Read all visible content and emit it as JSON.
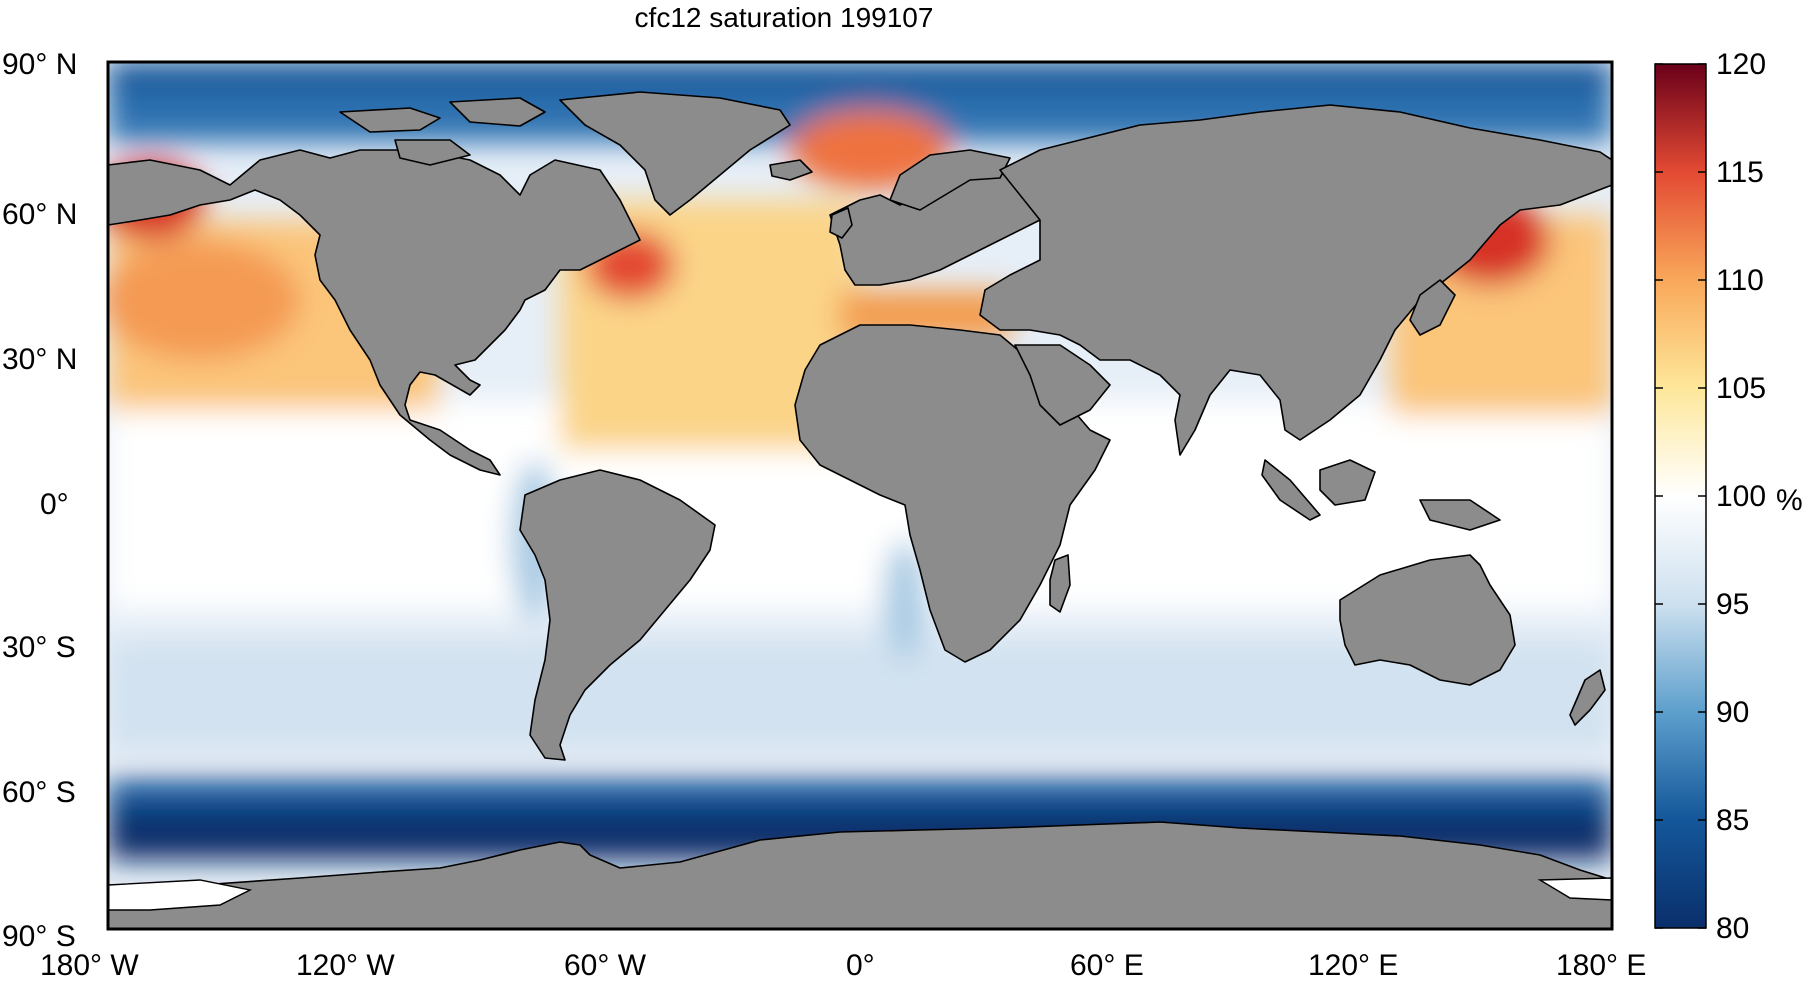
{
  "map": {
    "title": "cfc12 saturation 199107",
    "lat_labels": [
      "90° N",
      "60° N",
      "30° N",
      "0°",
      "30° S",
      "60° S",
      "90° S"
    ],
    "lon_labels": [
      "180° W",
      "120° W",
      "60° W",
      "0°",
      "60° E",
      "120° E",
      "180° E"
    ],
    "land_color": "#8c8c8c",
    "coastline_color": "#000000"
  },
  "colorbar": {
    "ticks": [
      "120",
      "115",
      "110",
      "105",
      "100",
      "95",
      "90",
      "85",
      "80"
    ],
    "unit": "%",
    "range": [
      80,
      120
    ],
    "colors_low_to_high": [
      "#0a2f6b",
      "#14579a",
      "#2d78b8",
      "#5d9fcc",
      "#99c3e0",
      "#cde0ef",
      "#eef4fa",
      "#ffffff",
      "#fff3b0",
      "#fed57d",
      "#f9a85a",
      "#ee7240",
      "#d73027",
      "#a50026",
      "#6a001a"
    ]
  }
}
